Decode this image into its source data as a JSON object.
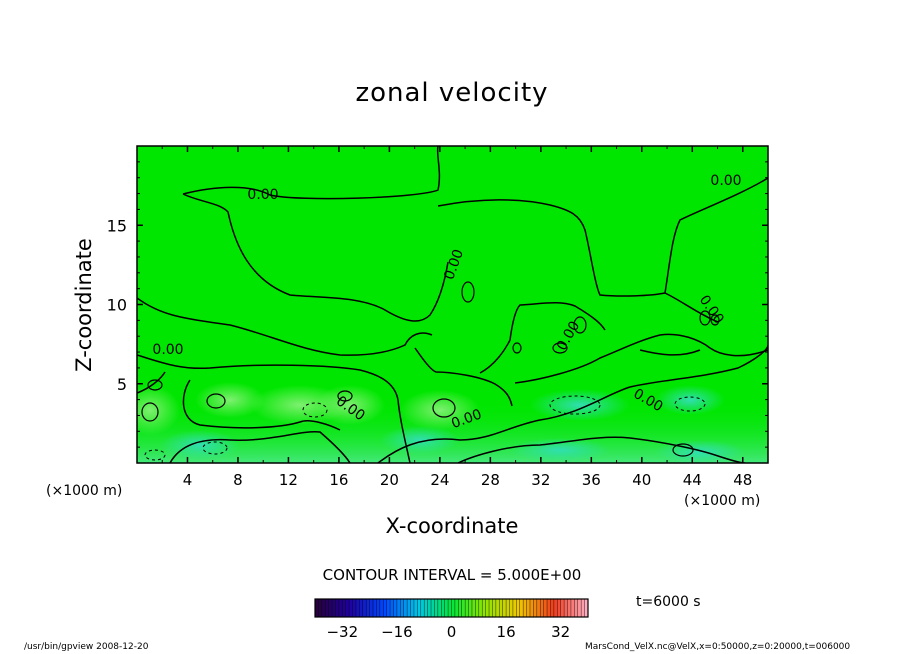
{
  "chart_data": {
    "type": "heatmap",
    "title": "zonal velocity",
    "xlabel": "X-coordinate",
    "ylabel": "Z-coordinate",
    "x_unit_label": "(×1000 m)",
    "xlim": [
      0,
      50
    ],
    "ylim": [
      0,
      20
    ],
    "x_ticks": [
      4,
      8,
      12,
      16,
      20,
      24,
      28,
      32,
      36,
      40,
      44,
      48
    ],
    "y_ticks": [
      5,
      10,
      15
    ],
    "contour_labels": [
      "0.00",
      "0.00",
      "0.00",
      "0.00",
      "0.00",
      "0.00",
      "0.00",
      "0.00",
      "0.00"
    ],
    "contour_interval_text": "CONTOUR INTERVAL = 5.000E+00",
    "colorbar": {
      "range": [
        -40,
        40
      ],
      "ticks": [
        -32,
        -16,
        0,
        16,
        32
      ],
      "colormap": "rainbow"
    },
    "time_label": "t=6000 s",
    "field_colors": {
      "base": "#00e600",
      "light": "#6cf05a",
      "teal": "#38e3a0"
    }
  },
  "footer": {
    "left": "/usr/bin/gpview   2008-12-20",
    "right": "MarsCond_VelX.nc@VelX,x=0:50000,z=0:20000,t=006000"
  }
}
